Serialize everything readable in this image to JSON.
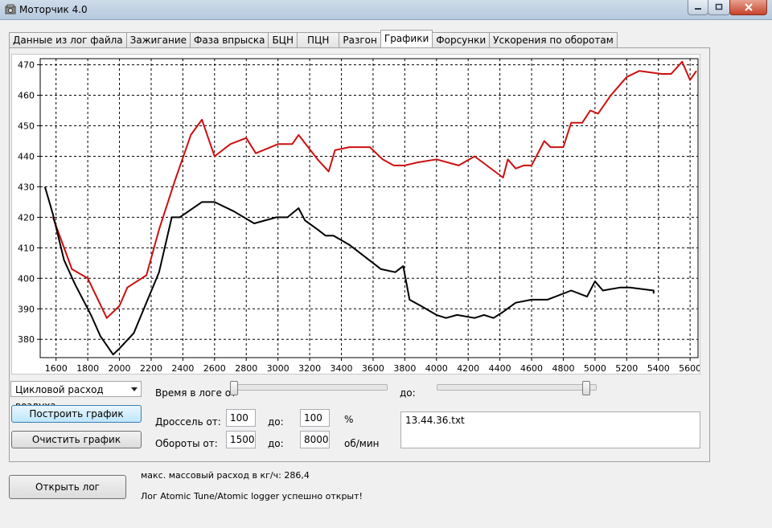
{
  "window": {
    "title": "Моторчик 4.0"
  },
  "tabs": [
    {
      "label": "Данные из лог файла",
      "active": false
    },
    {
      "label": "Зажигание",
      "active": false
    },
    {
      "label": "Фаза впрыска",
      "active": false
    },
    {
      "label": "БЦН",
      "active": false
    },
    {
      "label": "ПЦН",
      "active": false
    },
    {
      "label": "Разгон",
      "active": false
    },
    {
      "label": "Графики",
      "active": true
    },
    {
      "label": "Форсунки",
      "active": false
    },
    {
      "label": "Ускорения по оборотам",
      "active": false
    }
  ],
  "chart_data": {
    "type": "line",
    "title": "",
    "xlabel": "",
    "ylabel": "",
    "xlim": [
      1500,
      5650
    ],
    "ylim": [
      374,
      472
    ],
    "xticks": [
      1600,
      1800,
      2000,
      2200,
      2400,
      2600,
      2800,
      3000,
      3200,
      3400,
      3600,
      3800,
      4000,
      4200,
      4400,
      4600,
      4800,
      5000,
      5200,
      5400,
      5600
    ],
    "yticks": [
      380,
      390,
      400,
      410,
      420,
      430,
      440,
      450,
      460,
      470
    ],
    "grid": true,
    "series": [
      {
        "color": "#cc1010",
        "x": [
          1580,
          1700,
          1800,
          1920,
          2000,
          2050,
          2170,
          2250,
          2350,
          2450,
          2520,
          2600,
          2700,
          2800,
          2860,
          3000,
          3090,
          3130,
          3250,
          3320,
          3360,
          3450,
          3580,
          3660,
          3730,
          3800,
          3880,
          4000,
          4140,
          4240,
          4420,
          4450,
          4500,
          4550,
          4600,
          4680,
          4720,
          4800,
          4850,
          4920,
          4970,
          5020,
          5100,
          5200,
          5280,
          5420,
          5480,
          5550,
          5600,
          5640
        ],
        "y": [
          420,
          403,
          400,
          387,
          391,
          397,
          401,
          416,
          432,
          447,
          452,
          440,
          444,
          446,
          441,
          444,
          444,
          447,
          439,
          435,
          442,
          443,
          443,
          439,
          437,
          437,
          438,
          439,
          437,
          440,
          433,
          439,
          436,
          437,
          437,
          445,
          443,
          443,
          451,
          451,
          455,
          454,
          460,
          466,
          468,
          467,
          467,
          471,
          465,
          468
        ]
      },
      {
        "color": "#000000",
        "x": [
          1530,
          1580,
          1650,
          1720,
          1820,
          1880,
          1960,
          2000,
          2090,
          2250,
          2330,
          2380,
          2520,
          2600,
          2720,
          2850,
          2990,
          3060,
          3130,
          3170,
          3250,
          3300,
          3350,
          3450,
          3650,
          3740,
          3790,
          3830,
          3900,
          4000,
          4060,
          4130,
          4240,
          4300,
          4360,
          4420,
          4500,
          4600,
          4700,
          4850,
          4950,
          5000,
          5050,
          5160,
          5220,
          5370,
          5370
        ],
        "y": [
          430,
          421,
          406,
          398,
          388,
          381,
          375,
          377,
          382,
          402,
          420,
          420,
          425,
          425,
          422,
          418,
          420,
          420,
          423,
          419,
          416,
          414,
          414,
          411,
          403,
          402,
          404,
          393,
          391,
          388,
          387,
          388,
          387,
          388,
          387,
          389,
          392,
          393,
          393,
          396,
          394,
          399,
          396,
          397,
          397,
          396,
          395
        ]
      }
    ]
  },
  "controls": {
    "param_select": "Цикловой расход воздуха",
    "build_button": "Построить график",
    "clear_button": "Очистить график",
    "time_from_label": "Время в логе от",
    "time_to_label": "до:",
    "time_from_pos": 0.0,
    "time_to_pos": 1.0,
    "throttle_label": "Дроссель от:",
    "throttle_from": "100",
    "throttle_to_label": "до:",
    "throttle_to": "100",
    "throttle_unit": "%",
    "rpm_label": "Обороты от:",
    "rpm_from": "1500",
    "rpm_to_label": "до:",
    "rpm_to": "8000",
    "rpm_unit": "об/мин",
    "files": [
      "13.44.36.txt"
    ]
  },
  "footer": {
    "open_button": "Открыть лог",
    "max_flow_text": "макс. массовый расход в кг/ч: 286,4",
    "status_text": "Лог Atomic Tune/Atomic logger успешно открыт!"
  }
}
